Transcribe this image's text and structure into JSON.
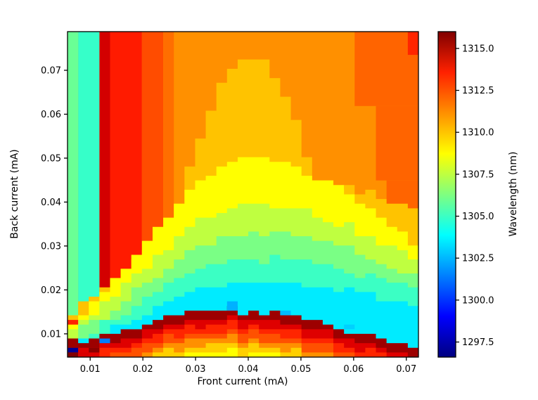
{
  "chart_data": {
    "type": "heatmap",
    "title": "",
    "xlabel": "Front current (mA)",
    "ylabel": "Back current (mA)",
    "x": {
      "min": 0.0057,
      "max": 0.0723,
      "ticks": [
        0.01,
        0.02,
        0.03,
        0.04,
        0.05,
        0.06,
        0.07
      ],
      "tick_labels": [
        "0.01",
        "0.02",
        "0.03",
        "0.04",
        "0.05",
        "0.06",
        "0.07"
      ]
    },
    "y": {
      "min": 0.0047,
      "max": 0.0788,
      "ticks": [
        0.01,
        0.02,
        0.03,
        0.04,
        0.05,
        0.06,
        0.07
      ],
      "tick_labels": [
        "0.01",
        "0.02",
        "0.03",
        "0.04",
        "0.05",
        "0.06",
        "0.07"
      ]
    },
    "colorbar": {
      "label": "Wavelength (nm)",
      "colormap": "jet",
      "vmin": 1296.6,
      "vmax": 1316.0,
      "ticks": [
        1297.5,
        1300.0,
        1302.5,
        1305.0,
        1307.5,
        1310.0,
        1312.5,
        1315.0
      ],
      "tick_labels": [
        "1297.5",
        "1300.0",
        "1302.5",
        "1305.0",
        "1307.5",
        "1310.0",
        "1312.5",
        "1315.0"
      ]
    },
    "grid": {
      "ncols": 33,
      "nrows": 70
    },
    "base_wavelength_nm": 1311.3,
    "regions": [
      {
        "x0": 0.0117,
        "x1": 0.0198,
        "y0": 0.0047,
        "y1": 0.0788,
        "nm": 1313.7
      },
      {
        "x0": 0.0117,
        "x1": 0.0138,
        "y0": 0.0175,
        "y1": 0.0788,
        "nm": 1314.6
      },
      {
        "x0": 0.0198,
        "x1": 0.0238,
        "y0": 0.0047,
        "y1": 0.0788,
        "nm": 1312.7
      },
      {
        "x0": 0.0238,
        "x1": 0.0258,
        "y0": 0.0047,
        "y1": 0.0788,
        "nm": 1312.0
      },
      {
        "x0": 0.0057,
        "x1": 0.0077,
        "y0": 0.0047,
        "y1": 0.0788,
        "nm": 1305.9
      },
      {
        "x0": 0.0077,
        "x1": 0.0117,
        "y0": 0.0047,
        "y1": 0.0788,
        "nm": 1304.9
      },
      {
        "x0": 0.061,
        "x1": 0.0723,
        "y0": 0.062,
        "y1": 0.0788,
        "nm": 1312.2
      },
      {
        "x0": 0.0637,
        "x1": 0.0723,
        "y0": 0.045,
        "y1": 0.062,
        "nm": 1312.2
      },
      {
        "x0": 0.0664,
        "x1": 0.0723,
        "y0": 0.03,
        "y1": 0.045,
        "nm": 1312.2
      },
      {
        "x0": 0.069,
        "x1": 0.0723,
        "y0": 0.017,
        "y1": 0.03,
        "nm": 1312.2
      },
      {
        "x0": 0.07,
        "x1": 0.0723,
        "y0": 0.074,
        "y1": 0.0788,
        "nm": 1313.5
      }
    ],
    "dome": {
      "center": 0.0405,
      "bands": [
        {
          "name": "amber",
          "nm": 1310.25,
          "components": [
            [
              0.008,
              0.065,
              0.0165,
              0.0165
            ],
            [
              0.008,
              0.038,
              0.026,
              0.065
            ]
          ]
        },
        {
          "name": "yellow",
          "nm": 1308.9,
          "components": [
            [
              0.004,
              0.046,
              0.0268,
              0.042
            ]
          ]
        },
        {
          "name": "yellowgreen",
          "nm": 1307.5,
          "components": [
            [
              0.003,
              0.037,
              0.0278,
              0.046
            ]
          ]
        },
        {
          "name": "green",
          "nm": 1306.2,
          "components": [
            [
              0.002,
              0.031,
              0.0289,
              0.05
            ]
          ]
        },
        {
          "name": "turquoise",
          "nm": 1305.0,
          "components": [
            [
              0.002,
              0.025,
              0.0295,
              0.054
            ]
          ]
        },
        {
          "name": "cyan",
          "nm": 1303.5,
          "components": [
            [
              0.0015,
              0.02,
              0.0318,
              0.058
            ]
          ]
        }
      ]
    },
    "arc": {
      "center": 0.037,
      "base": 0.0035,
      "peak": 0.012,
      "width": 0.031,
      "layers": [
        {
          "offset": 0.0,
          "nm": 1315.5
        },
        {
          "offset": 0.002,
          "nm": 1314.4
        },
        {
          "offset": 0.0035,
          "nm": 1313.5
        },
        {
          "offset": 0.005,
          "nm": 1312.6
        },
        {
          "offset": 0.0065,
          "nm": 1311.3
        },
        {
          "offset": 0.008,
          "nm": 1310.0
        },
        {
          "offset": 0.0095,
          "nm": 1308.8
        }
      ]
    },
    "anomalies": [
      {
        "x0": 0.0057,
        "x1": 0.0077,
        "y0": 0.0058,
        "y1": 0.007,
        "nm": 1297.0
      },
      {
        "x0": 0.0057,
        "x1": 0.0077,
        "y0": 0.0047,
        "y1": 0.0058,
        "nm": 1316.0
      },
      {
        "x0": 0.0077,
        "x1": 0.0097,
        "y0": 0.005,
        "y1": 0.0062,
        "nm": 1314.5
      },
      {
        "x0": 0.0097,
        "x1": 0.0117,
        "y0": 0.0056,
        "y1": 0.0068,
        "nm": 1315.8
      },
      {
        "x0": 0.0117,
        "x1": 0.0138,
        "y0": 0.0078,
        "y1": 0.009,
        "nm": 1301.4
      },
      {
        "x0": 0.0057,
        "x1": 0.0077,
        "y0": 0.0124,
        "y1": 0.0136,
        "nm": 1313.6
      },
      {
        "x0": 0.0355,
        "x1": 0.0376,
        "y0": 0.0158,
        "y1": 0.017,
        "nm": 1302.4
      },
      {
        "x0": 0.0468,
        "x1": 0.0488,
        "y0": 0.0146,
        "y1": 0.0158,
        "nm": 1302.6
      },
      {
        "x0": 0.0576,
        "x1": 0.0596,
        "y0": 0.0112,
        "y1": 0.0124,
        "nm": 1303.0
      }
    ]
  }
}
